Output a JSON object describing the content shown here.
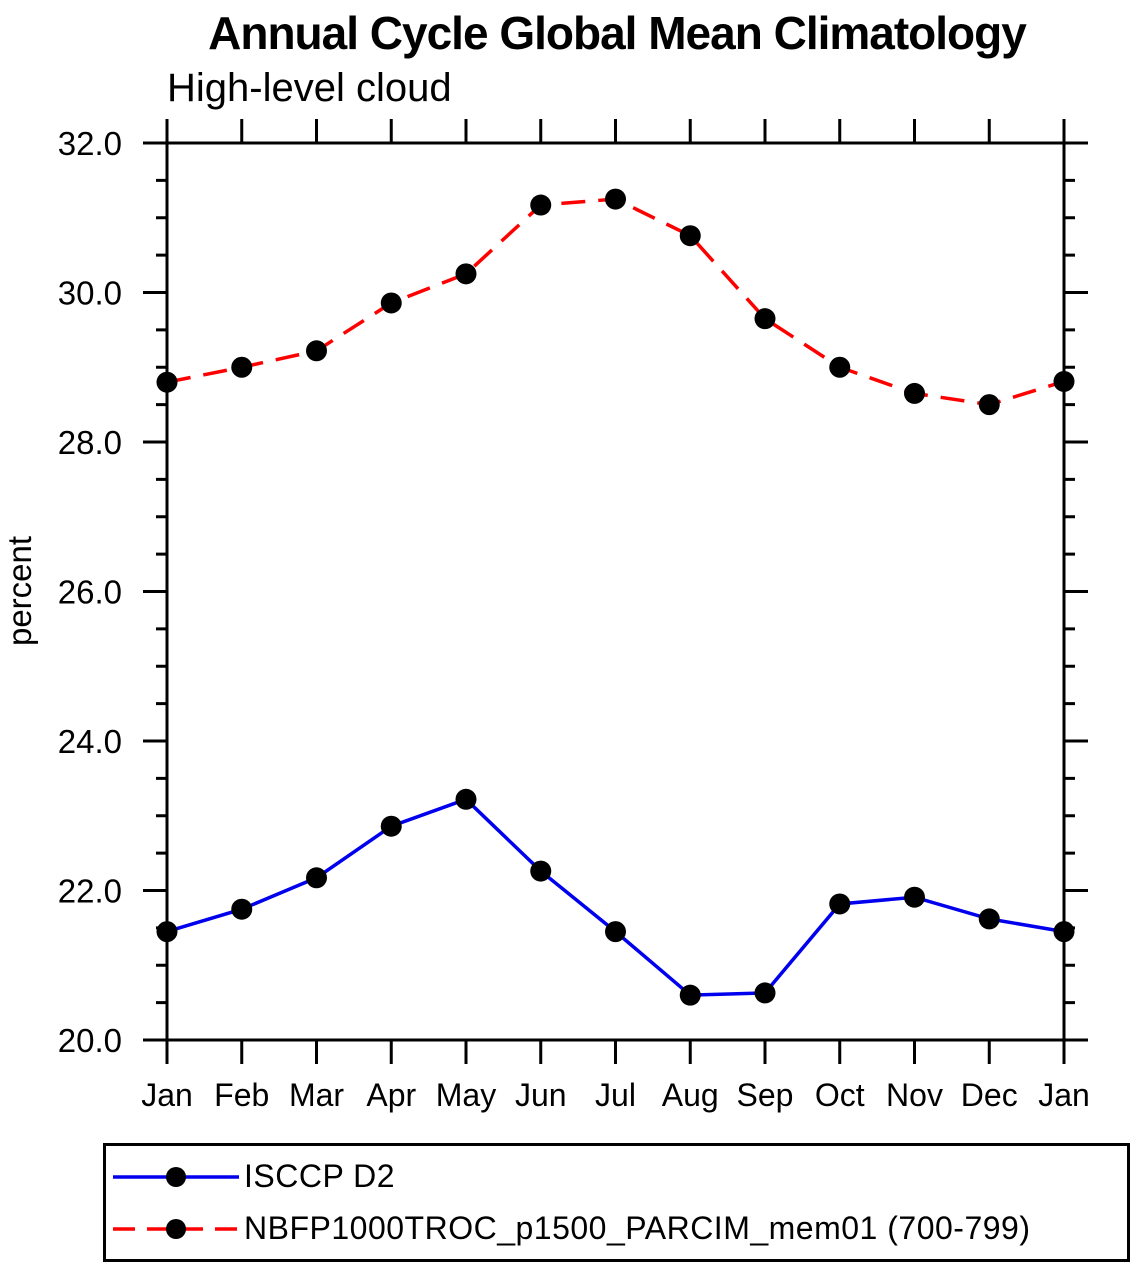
{
  "chart_data": {
    "type": "line",
    "title": "Annual Cycle Global Mean Climatology",
    "subtitle": "High-level cloud",
    "ylabel": "percent",
    "xlabel": "",
    "categories": [
      "Jan",
      "Feb",
      "Mar",
      "Apr",
      "May",
      "Jun",
      "Jul",
      "Aug",
      "Sep",
      "Oct",
      "Nov",
      "Dec",
      "Jan"
    ],
    "ylim": [
      20.0,
      32.0
    ],
    "y_tick_values": [
      20,
      22,
      24,
      26,
      28,
      30,
      32
    ],
    "y_tick_labels": [
      "20.0",
      "22.0",
      "24.0",
      "26.0",
      "28.0",
      "30.0",
      "32.0"
    ],
    "y_minor_step": 0.5,
    "grid": "off",
    "marker_color": "#000000",
    "series": [
      {
        "name": "ISCCP D2",
        "color": "#0000ee",
        "dash": "solid",
        "values": [
          21.45,
          21.75,
          22.17,
          22.86,
          23.22,
          22.26,
          21.45,
          20.6,
          20.63,
          21.82,
          21.91,
          21.62,
          21.45
        ]
      },
      {
        "name": "NBFP1000TROC_p1500_PARCIM_mem01 (700-799)",
        "color": "#ff0000",
        "dash": "dashed",
        "values": [
          28.8,
          29.0,
          29.22,
          29.86,
          30.25,
          31.17,
          31.25,
          30.76,
          29.65,
          29.0,
          28.65,
          28.5,
          28.81
        ]
      }
    ],
    "legend": {
      "position": "bottom",
      "border": true
    }
  }
}
